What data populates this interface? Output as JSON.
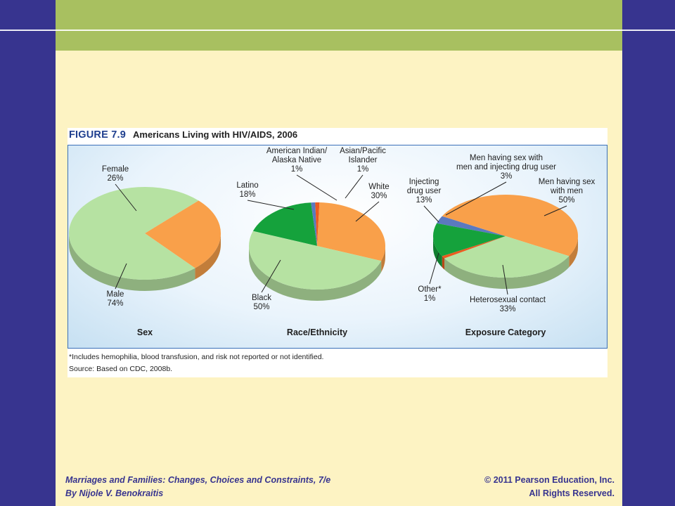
{
  "figure": {
    "number": "FIGURE 7.9",
    "title": "Americans Living with HIV/AIDS, 2006",
    "footnote": "*Includes hemophilia, blood transfusion, and risk not reported or not identified.",
    "source": "Source: Based on CDC, 2008b."
  },
  "footer": {
    "book_title": "Marriages and Families: Changes, Choices and Constraints, 7/e",
    "author": "By Nijole V. Benokraitis",
    "copyright": "© 2011 Pearson Education, Inc.",
    "rights": "All Rights Reserved."
  },
  "colors": {
    "frame": "#37348f",
    "top_band": "#a8c060",
    "background": "#fdf3c3",
    "orange": "#f9a04a",
    "light_green": "#b6e2a2",
    "dark_green": "#15a23c",
    "blue": "#5b79c0",
    "red_orange": "#ec5b1f",
    "panel_border": "#3a6fb8"
  },
  "chart_data": [
    {
      "type": "pie",
      "xlabel": "Sex",
      "slices": [
        {
          "label": [
            "Female",
            "26%"
          ],
          "value": 26,
          "color": "#f9a04a"
        },
        {
          "label": [
            "Male",
            "74%"
          ],
          "value": 74,
          "color": "#b6e2a2"
        }
      ]
    },
    {
      "type": "pie",
      "xlabel": "Race/Ethnicity",
      "slices": [
        {
          "label": [
            "Latino",
            "18%"
          ],
          "value": 18,
          "color": "#15a23c"
        },
        {
          "label": [
            "American Indian/",
            "Alaska Native",
            "1%"
          ],
          "value": 1,
          "color": "#5b79c0"
        },
        {
          "label": [
            "Asian/Pacific",
            "Islander",
            "1%"
          ],
          "value": 1,
          "color": "#ec5b1f"
        },
        {
          "label": [
            "White",
            "30%"
          ],
          "value": 30,
          "color": "#f9a04a"
        },
        {
          "label": [
            "Black",
            "50%"
          ],
          "value": 50,
          "color": "#b6e2a2"
        }
      ]
    },
    {
      "type": "pie",
      "xlabel": "Exposure Category",
      "slices": [
        {
          "label": [
            "Men having sex with",
            "men and injecting drug user",
            "3%"
          ],
          "value": 3,
          "color": "#5b79c0"
        },
        {
          "label": [
            "Men having sex",
            "with men",
            "50%"
          ],
          "value": 50,
          "color": "#f9a04a"
        },
        {
          "label": [
            "Heterosexual contact",
            "33%"
          ],
          "value": 33,
          "color": "#b6e2a2"
        },
        {
          "label": [
            "Other*",
            "1%"
          ],
          "value": 1,
          "color": "#ec5b1f"
        },
        {
          "label": [
            "Injecting",
            "drug user",
            "13%"
          ],
          "value": 13,
          "color": "#15a23c"
        }
      ]
    }
  ]
}
